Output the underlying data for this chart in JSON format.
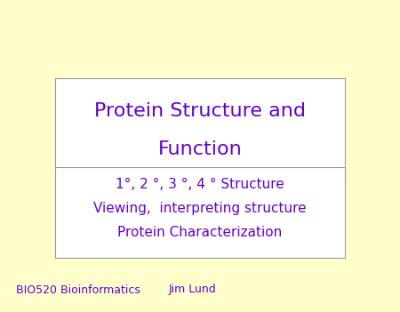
{
  "bg_color": "#FFFFCC",
  "title_box_text_line1": "Protein Structure and",
  "title_box_text_line2": "Function",
  "subtitle_line1": "1°, 2 °, 3 °, 4 ° Structure",
  "subtitle_line2": "Viewing,  interpreting structure",
  "subtitle_line3": "Protein Characterization",
  "footer_left": "BIO520 Bioinformatics",
  "footer_right": "Jim Lund",
  "text_color": "#6600CC",
  "box_bg_color": "#FFFFFF",
  "box_edge_color": "#999999",
  "title_fontsize": 16,
  "subtitle_fontsize": 11,
  "footer_fontsize": 9
}
